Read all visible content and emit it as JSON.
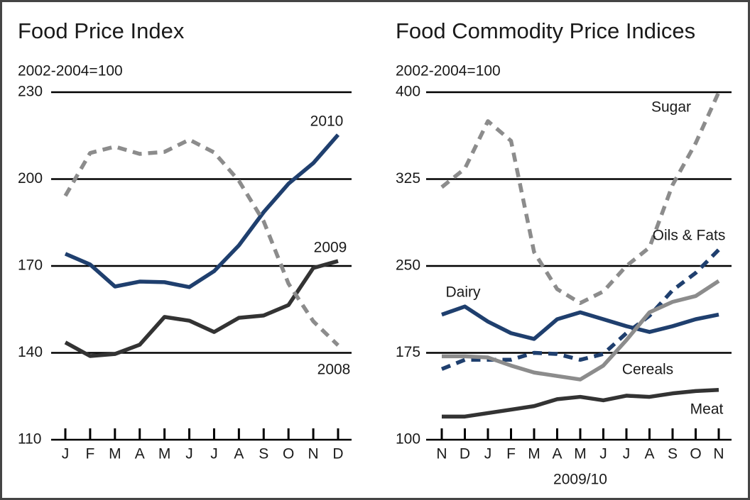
{
  "chart_data": [
    {
      "type": "line",
      "title": "Food Price Index",
      "subtitle": "2002-2004=100",
      "categories": [
        "J",
        "F",
        "M",
        "A",
        "M",
        "J",
        "J",
        "A",
        "S",
        "O",
        "N",
        "D"
      ],
      "ylim": [
        110,
        230
      ],
      "yticks": [
        110,
        140,
        170,
        200,
        230
      ],
      "grid": true,
      "series": [
        {
          "name": "2010",
          "color": "#1f3f6e",
          "dashed": false,
          "values": [
            174.2,
            170.5,
            162.9,
            164.6,
            164.4,
            162.7,
            168.2,
            177.1,
            188.6,
            198.4,
            205.5,
            215.3
          ]
        },
        {
          "name": "2009",
          "color": "#333333",
          "dashed": false,
          "values": [
            143.6,
            138.9,
            139.6,
            142.8,
            152.4,
            151.1,
            147.2,
            152.1,
            152.9,
            156.5,
            169.3,
            171.7
          ]
        },
        {
          "name": "2008",
          "color": "#8c8c8c",
          "dashed": true,
          "values": [
            194.2,
            209.0,
            211.2,
            208.7,
            209.4,
            213.6,
            209.2,
            199.4,
            185.4,
            163.9,
            150.9,
            142.6
          ]
        }
      ]
    },
    {
      "type": "line",
      "title": "Food Commodity Price Indices",
      "subtitle": "2002-2004=100",
      "xlabel": "2009/10",
      "categories": [
        "N",
        "D",
        "J",
        "F",
        "M",
        "A",
        "M",
        "J",
        "J",
        "A",
        "S",
        "O",
        "N"
      ],
      "ylim": [
        100,
        400
      ],
      "yticks": [
        100,
        175,
        250,
        325,
        400
      ],
      "grid": true,
      "series": [
        {
          "name": "Sugar",
          "color": "#8c8c8c",
          "dashed": true,
          "values": [
            318,
            334,
            375,
            358,
            262,
            230,
            218,
            228,
            250,
            266,
            320,
            356,
            400
          ]
        },
        {
          "name": "Oils & Fats",
          "color": "#1f3f6e",
          "dashed": true,
          "values": [
            161,
            169,
            169,
            169,
            175,
            174,
            169,
            174,
            192,
            207,
            229,
            244,
            264
          ]
        },
        {
          "name": "Dairy",
          "color": "#1f3f6e",
          "dashed": false,
          "values": [
            208,
            215,
            202,
            192,
            187,
            204,
            210,
            204,
            198,
            193,
            198,
            204,
            208
          ]
        },
        {
          "name": "Cereals",
          "color": "#8c8c8c",
          "dashed": false,
          "values": [
            172,
            172,
            171,
            164,
            158,
            155,
            152,
            164,
            186,
            210,
            219,
            224,
            237
          ]
        },
        {
          "name": "Meat",
          "color": "#333333",
          "dashed": false,
          "values": [
            120,
            120,
            123,
            126,
            129,
            135,
            137,
            134,
            138,
            137,
            140,
            142,
            143
          ]
        }
      ]
    }
  ]
}
